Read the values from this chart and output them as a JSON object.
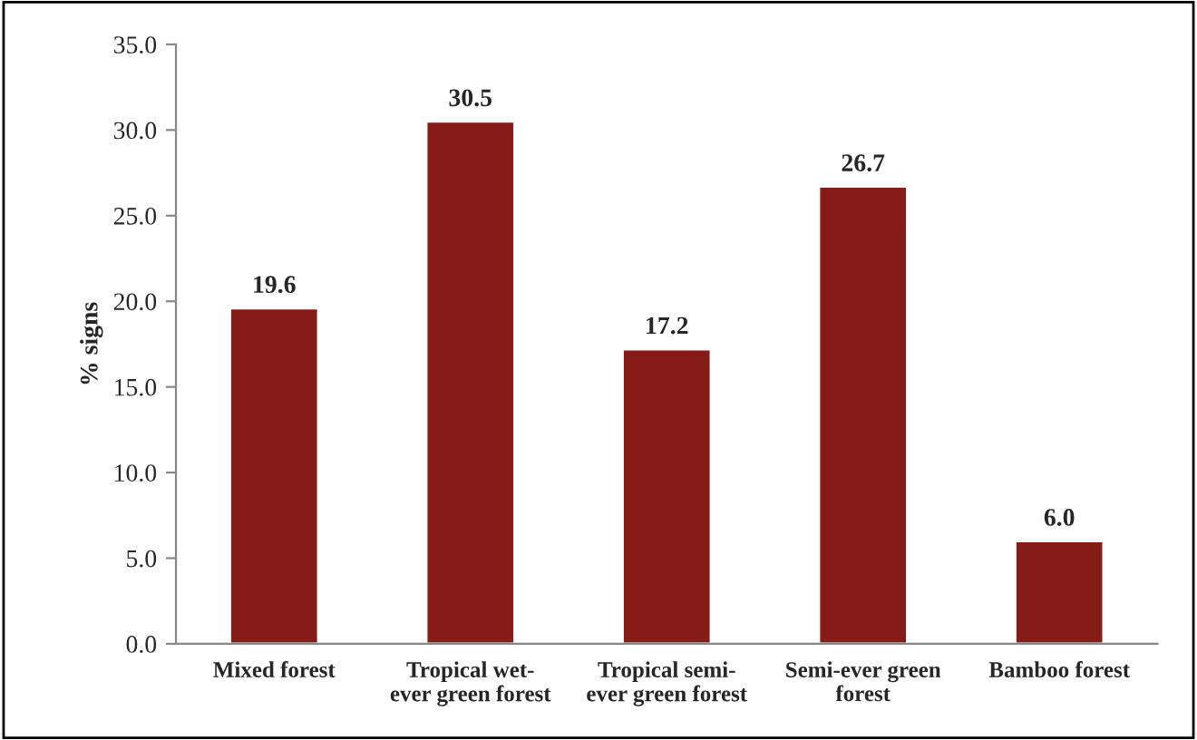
{
  "chart_data": {
    "type": "bar",
    "ylabel": "% signs",
    "categories": [
      "Mixed forest",
      "Tropical wet-\never green forest",
      "Tropical semi-\never green forest",
      "Semi-ever green\nforest",
      "Bamboo forest"
    ],
    "values": [
      19.6,
      30.5,
      17.2,
      26.7,
      6.0
    ],
    "value_labels": [
      "19.6",
      "30.5",
      "17.2",
      "26.7",
      "6.0"
    ],
    "color": "#851c17",
    "ylim": [
      0,
      35
    ],
    "yticks": [
      {
        "value": 0,
        "label": "0.0"
      },
      {
        "value": 5,
        "label": "5.0"
      },
      {
        "value": 10,
        "label": "10.0"
      },
      {
        "value": 15,
        "label": "15.0"
      },
      {
        "value": 20,
        "label": "20.0"
      },
      {
        "value": 25,
        "label": "25.0"
      },
      {
        "value": 30,
        "label": "30.0"
      },
      {
        "value": 35,
        "label": "35.0"
      }
    ],
    "grid": false,
    "legend": false
  }
}
